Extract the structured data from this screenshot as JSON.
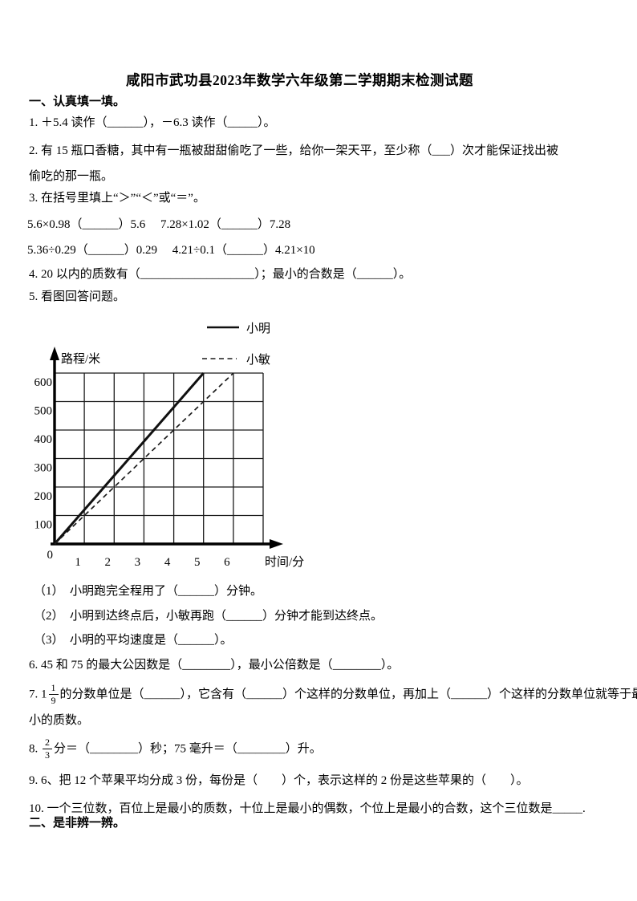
{
  "page": {
    "title": "咸阳市武功县2023年数学六年级第二学期期末检测试题",
    "section1": "一、认真填一填。",
    "section2": "二、是非辨一辨。"
  },
  "questions": {
    "q1": "1. ＋5.4 读作（______），－6.3 读作（_____）。",
    "q2a": "2. 有 15 瓶口香糖，其中有一瓶被甜甜偷吃了一些，给你一架天平，至少称（___）次才能保证找出被",
    "q2b": "偷吃的那一瓶。",
    "q3": "3. 在括号里填上“＞”“＜”或“＝”。",
    "q3r1": "5.6×0.98（______）5.6　  7.28×1.02（______）7.28",
    "q3r2": "5.36÷0.29（______）0.29　  4.21÷0.1（______）4.21×10",
    "q4": "4. 20 以内的质数有（___________________）；最小的合数是（______）。",
    "q5": "5. 看图回答问题。",
    "q5_1": "（1）　小明跑完全程用了（______）分钟。",
    "q5_2": "（2）　小明到达终点后，小敏再跑（______）分钟才能到达终点。",
    "q5_3": "（3）　小明的平均速度是（______）。",
    "q6": "6. 45 和 75 的最大公因数是（________），最小公倍数是（________）。",
    "q7_pre": "7. 1",
    "q7_num": "1",
    "q7_den": "9",
    "q7_post": "的分数单位是（______），它含有（______）个这样的分数单位，再加上（______）个这样的分数单位就等于最",
    "q7b": "小的质数。",
    "q8_pre": "8. ",
    "q8_num": "2",
    "q8_den": "3",
    "q8_post": "分＝（________）秒；75 毫升＝（________）升。",
    "q9": "9. 6、把 12 个苹果平均分成 3 份，每份是（　　）个，表示这样的 2 份是这些苹果的（　　）。",
    "q10": "10. 一个三位数，百位上是最小的质数，十位上是最小的偶数，个位上是最小的合数，这个三位数是_____."
  },
  "chart_data": {
    "type": "line",
    "title": "",
    "xlabel": "时间/分",
    "ylabel": "路程/米",
    "origin_label": "0",
    "x_ticks": [
      0,
      1,
      2,
      3,
      4,
      5,
      6
    ],
    "y_ticks": [
      0,
      100,
      200,
      300,
      400,
      500,
      600
    ],
    "xlim": [
      0,
      7
    ],
    "ylim": [
      0,
      600
    ],
    "grid": true,
    "legend_position": "top-right-above-plot",
    "series": [
      {
        "name": "小明",
        "style": "solid",
        "x": [
          0,
          5
        ],
        "y": [
          0,
          600
        ]
      },
      {
        "name": "小敏",
        "style": "dashed",
        "x": [
          0,
          6
        ],
        "y": [
          0,
          600
        ]
      }
    ]
  }
}
